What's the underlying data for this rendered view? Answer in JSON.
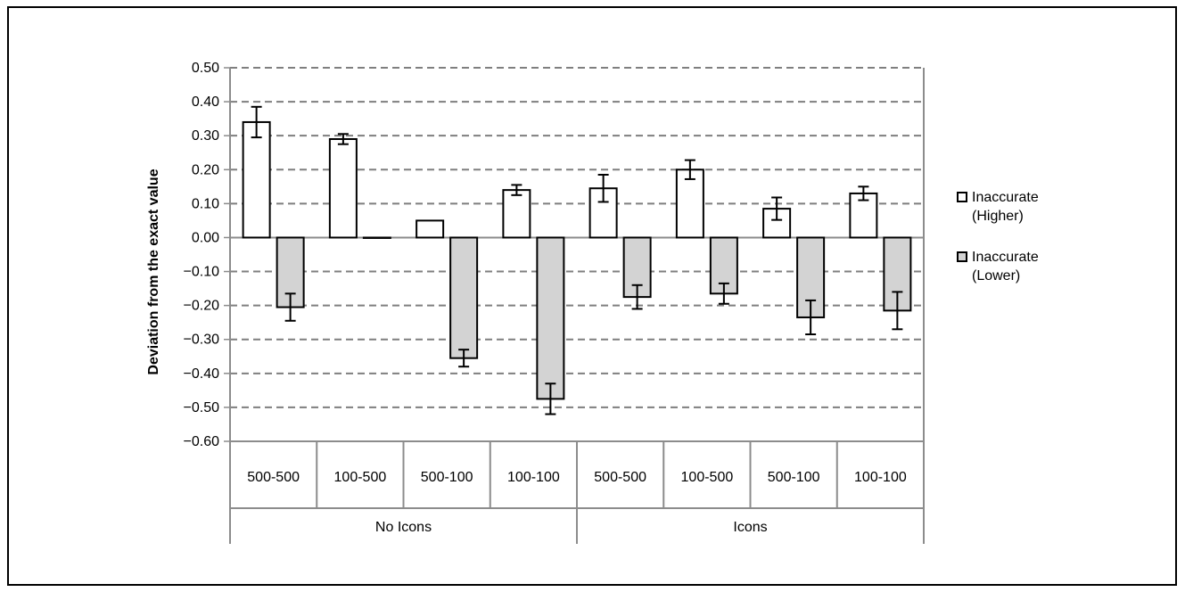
{
  "chart_data": {
    "type": "bar",
    "title": "",
    "ylabel": "Deviation from the exact value",
    "xlabel": "",
    "ylim": [
      -0.6,
      0.5
    ],
    "yticks": [
      0.5,
      0.4,
      0.3,
      0.2,
      0.1,
      0.0,
      -0.1,
      -0.2,
      -0.3,
      -0.4,
      -0.5,
      -0.6
    ],
    "ytick_labels": [
      "0.50",
      "0.40",
      "0.30",
      "0.20",
      "0.10",
      "0.00",
      "−0.10",
      "−0.20",
      "−0.30",
      "−0.40",
      "−0.50",
      "−0.60"
    ],
    "grid": "horizontal-dashed",
    "legend_position": "right",
    "groups": [
      {
        "label": "No Icons",
        "categories": [
          "500-500",
          "100-500",
          "500-100",
          "100-100"
        ]
      },
      {
        "label": "Icons",
        "categories": [
          "500-500",
          "100-500",
          "500-100",
          "100-100"
        ]
      }
    ],
    "series": [
      {
        "name": "Inaccurate (Higher)",
        "legend_lines": [
          "Inaccurate",
          "(Higher)"
        ],
        "color": "#ffffff",
        "values": [
          0.34,
          0.29,
          0.05,
          0.14,
          0.145,
          0.2,
          0.085,
          0.13
        ],
        "errors": [
          0.045,
          0.015,
          0.0,
          0.015,
          0.04,
          0.028,
          0.033,
          0.02
        ]
      },
      {
        "name": "Inaccurate (Lower)",
        "legend_lines": [
          "Inaccurate",
          "(Lower)"
        ],
        "color": "#d3d3d3",
        "values": [
          -0.205,
          -0.0,
          -0.355,
          -0.475,
          -0.175,
          -0.165,
          -0.235,
          -0.215
        ],
        "errors": [
          0.04,
          0.0,
          0.025,
          0.045,
          0.035,
          0.03,
          0.05,
          0.055
        ]
      }
    ]
  }
}
